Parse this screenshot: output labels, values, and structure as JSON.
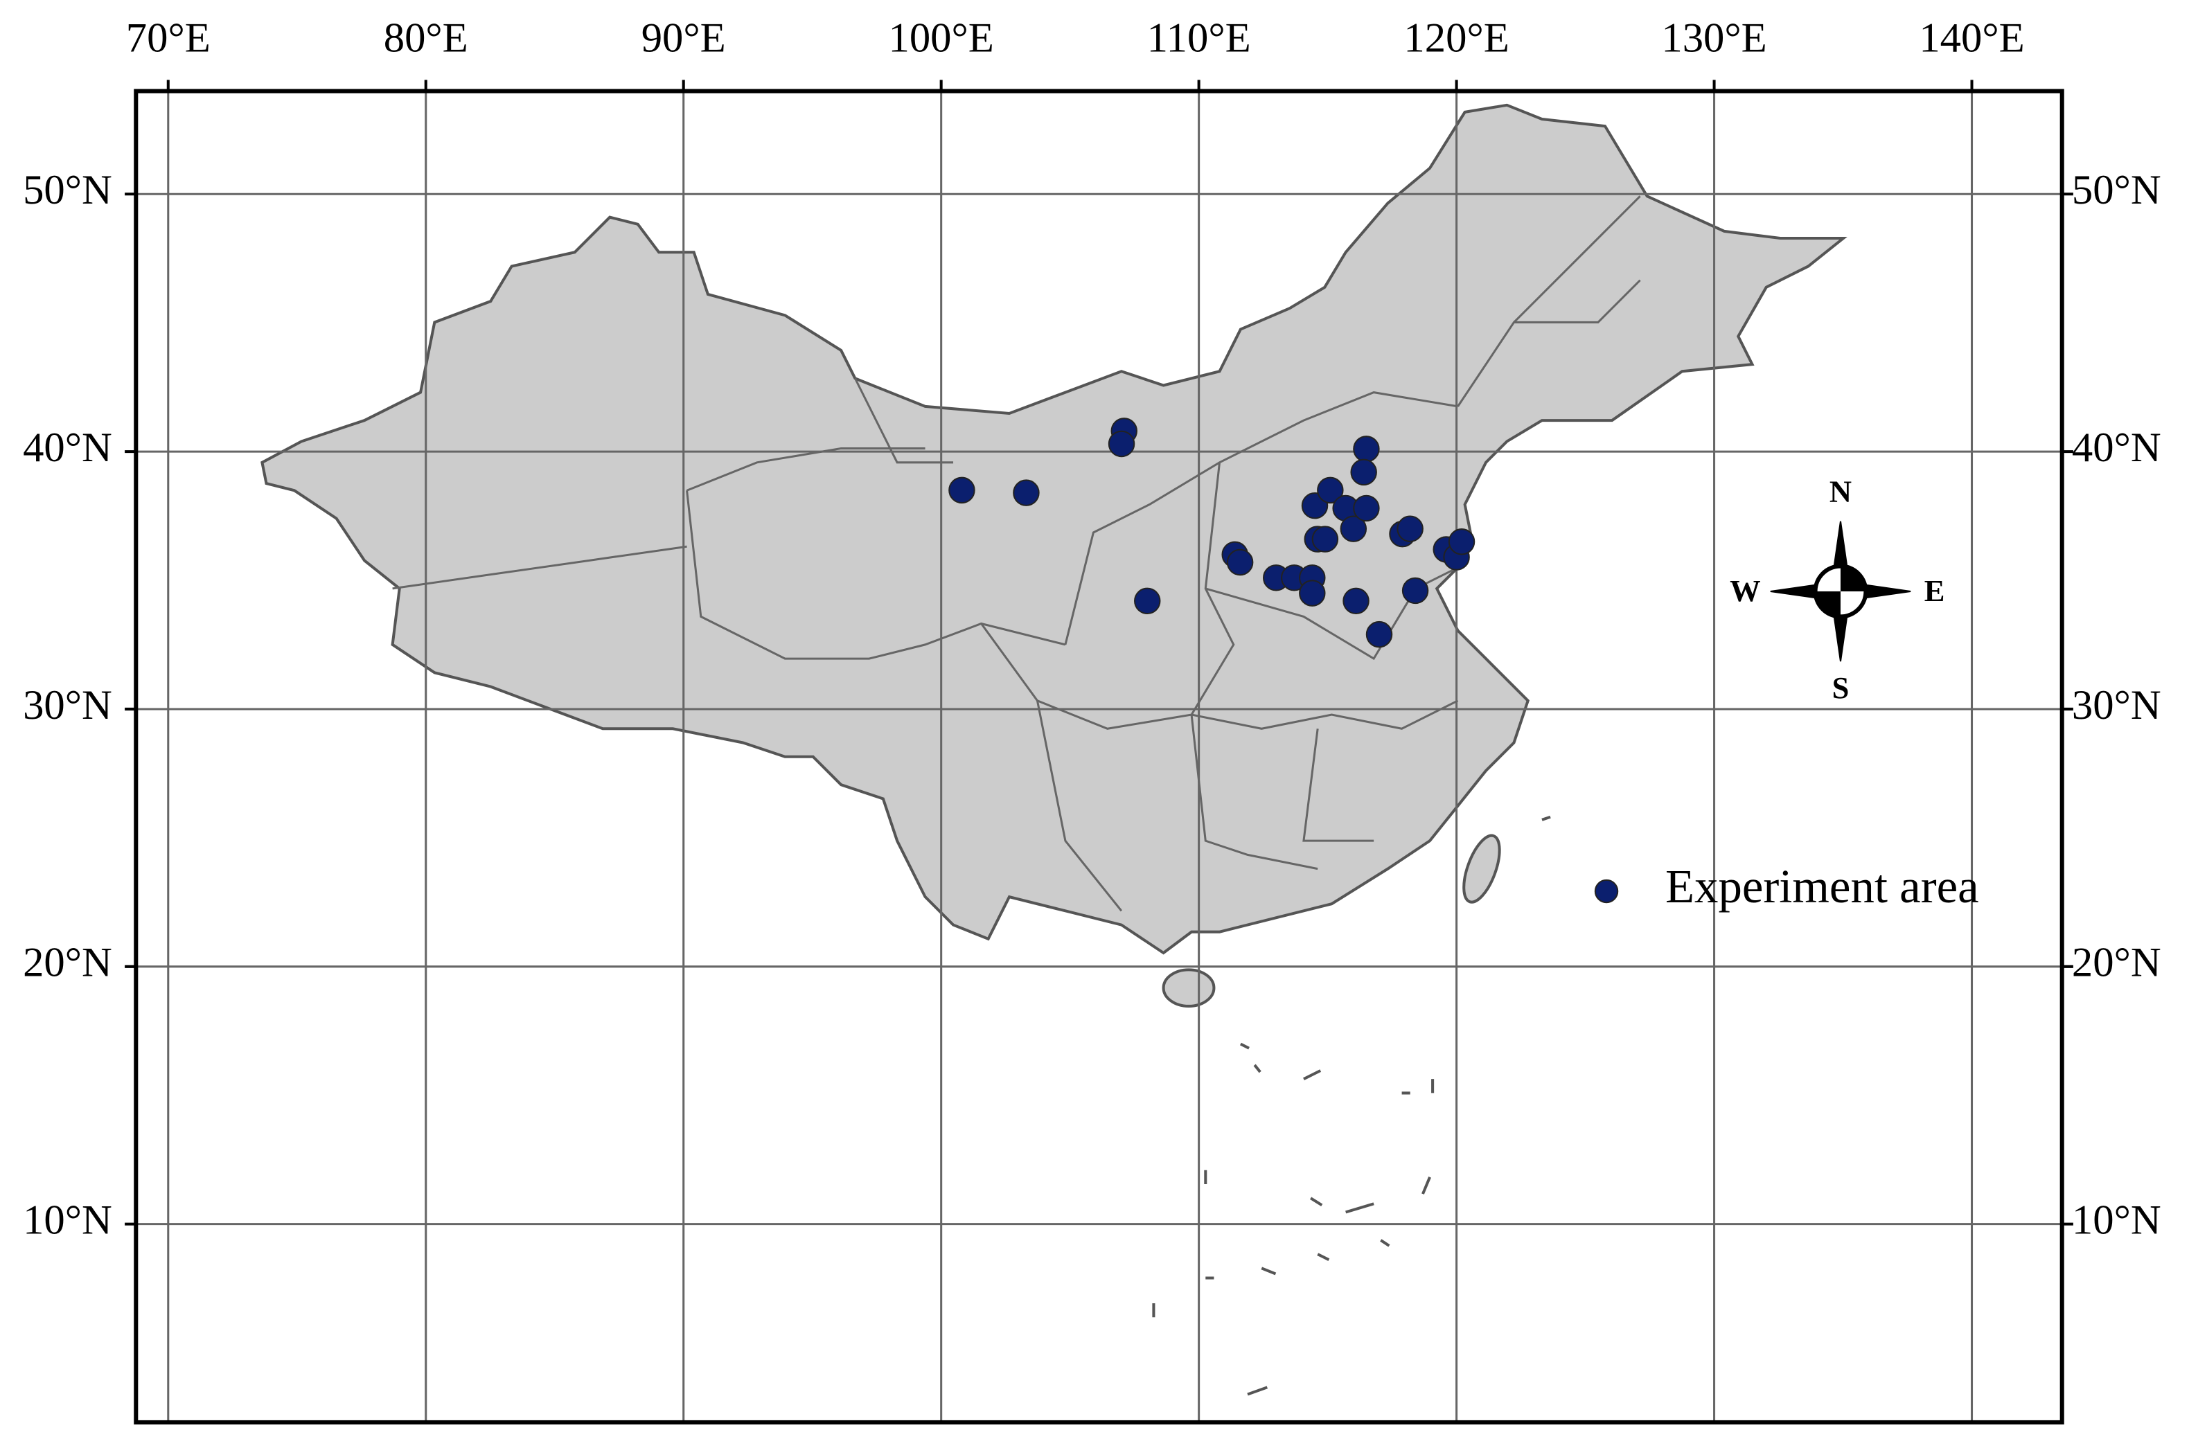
{
  "chart_data": {
    "type": "scatter",
    "xlim": [
      68.75,
      143.5
    ],
    "ylim": [
      2.3,
      54
    ],
    "xticks": [
      {
        "value": 70,
        "label": "70°E"
      },
      {
        "value": 80,
        "label": "80°E"
      },
      {
        "value": 90,
        "label": "90°E"
      },
      {
        "value": 100,
        "label": "100°E"
      },
      {
        "value": 110,
        "label": "110°E"
      },
      {
        "value": 120,
        "label": "120°E"
      },
      {
        "value": 130,
        "label": "130°E"
      },
      {
        "value": 140,
        "label": "140°E"
      }
    ],
    "yticks": [
      {
        "value": 10,
        "label": "10°N"
      },
      {
        "value": 20,
        "label": "20°N"
      },
      {
        "value": 30,
        "label": "30°N"
      },
      {
        "value": 40,
        "label": "40°N"
      },
      {
        "value": 50,
        "label": "50°N"
      }
    ],
    "grid": true,
    "compass": {
      "N": "N",
      "S": "S",
      "W": "W",
      "E": "E"
    },
    "series": [
      {
        "name": "Experiment area",
        "color": "#0b1f6e",
        "x": [
          100.8,
          103.3,
          107.1,
          107.0,
          108.0,
          111.4,
          111.6,
          113.0,
          113.7,
          114.4,
          114.4,
          114.5,
          114.6,
          114.9,
          115.1,
          115.7,
          116.0,
          116.5,
          116.5,
          116.4,
          116.1,
          117.0,
          117.9,
          118.2,
          118.4,
          119.6,
          120.0,
          120.2
        ],
        "values": [
          38.5,
          38.4,
          40.8,
          40.3,
          34.2,
          36.0,
          35.7,
          35.1,
          35.1,
          35.1,
          34.5,
          37.9,
          36.6,
          36.6,
          38.5,
          37.8,
          37.0,
          37.8,
          40.1,
          39.2,
          34.2,
          32.9,
          36.8,
          37.0,
          34.6,
          36.2,
          35.9,
          36.5
        ]
      }
    ]
  }
}
